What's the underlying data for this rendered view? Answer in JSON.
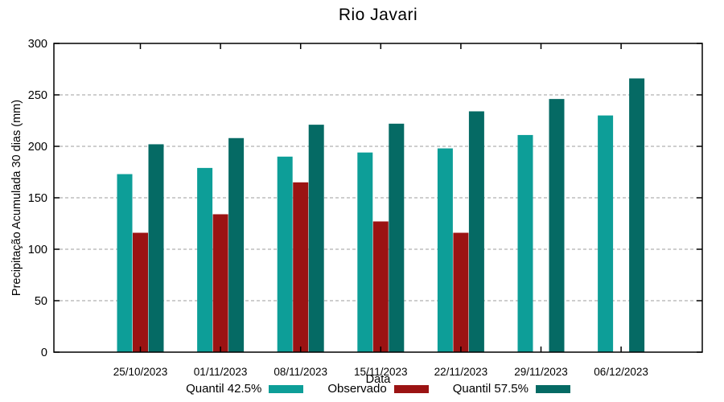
{
  "title": "Rio Javari",
  "chart_data": {
    "type": "bar",
    "title": "Rio Javari",
    "xlabel": "Data",
    "ylabel": "Precipitação Acumulada 30 dias (mm)",
    "ylim": [
      0,
      300
    ],
    "yticks": [
      0,
      50,
      100,
      150,
      200,
      250,
      300
    ],
    "grid": true,
    "grid_color": "#9e9e9e",
    "frame_color": "#000000",
    "legend_position": "bottom-center",
    "categories": [
      "25/10/2023",
      "01/11/2023",
      "08/11/2023",
      "15/11/2023",
      "22/11/2023",
      "29/11/2023",
      "06/12/2023"
    ],
    "series": [
      {
        "name": "Quantil 42.5%",
        "color": "#0d9e98",
        "values": [
          173,
          179,
          190,
          194,
          198,
          211,
          230
        ]
      },
      {
        "name": "Observado",
        "color": "#9b1313",
        "values": [
          116,
          134,
          165,
          127,
          116,
          null,
          null
        ]
      },
      {
        "name": "Quantil 57.5%",
        "color": "#056a64",
        "values": [
          202,
          208,
          221,
          222,
          234,
          246,
          266
        ]
      }
    ]
  }
}
